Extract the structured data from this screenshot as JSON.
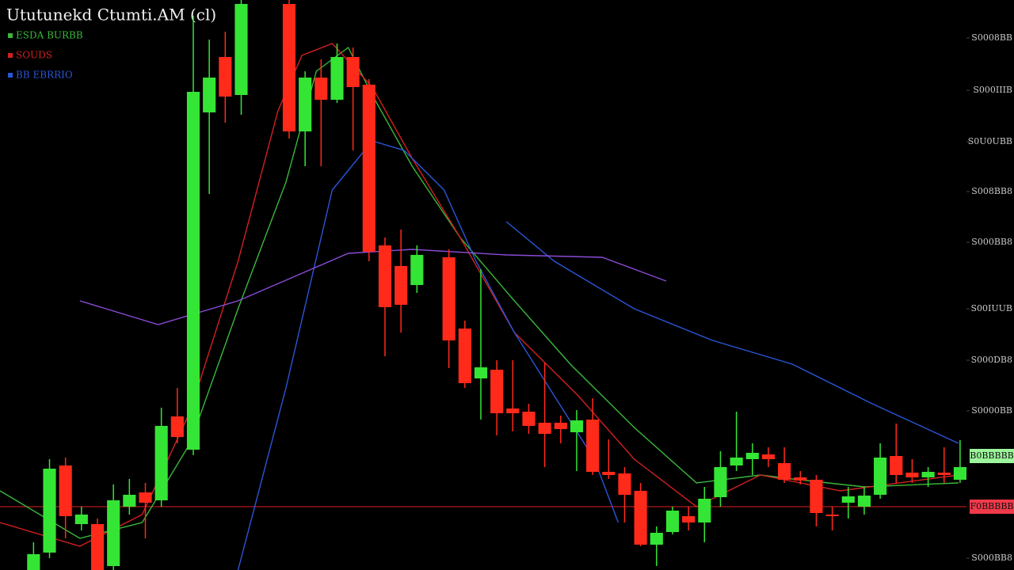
{
  "chart_data": {
    "type": "candlestick",
    "title": "Ututunekd Ctumti.AM (cl)",
    "up_color": "#35e535",
    "down_color": "#ff2a1a",
    "xlim": [
      -2.1,
      58.4
    ],
    "ylim": [
      0,
      720
    ],
    "yticks": [
      {
        "value": 672,
        "label": "S0008BB"
      },
      {
        "value": 606,
        "label": "S000IIIB"
      },
      {
        "value": 541,
        "label": "S0U0UBB"
      },
      {
        "value": 478,
        "label": "S008BB8"
      },
      {
        "value": 414,
        "label": "S000BB8"
      },
      {
        "value": 330,
        "label": "S00IUUB"
      },
      {
        "value": 265,
        "label": "S000DB8"
      },
      {
        "value": 201,
        "label": "S0000BB"
      },
      {
        "value": 15,
        "label": "S000BB8"
      }
    ],
    "open": [
      0,
      22,
      132,
      58,
      58,
      5,
      80,
      98,
      88,
      194,
      152,
      578,
      648,
      600,
      null,
      null,
      715,
      554,
      622,
      594,
      648,
      613,
      410,
      384,
      360,
      null,
      395,
      305,
      242,
      253,
      204,
      200,
      186,
      186,
      174,
      190,
      124,
      122,
      100,
      32,
      48,
      68,
      60,
      92,
      132,
      140,
      146,
      135,
      117,
      114,
      70,
      85,
      80,
      95,
      144,
      123,
      117,
      123,
      114
    ],
    "high": [
      35,
      140,
      142,
      80,
      65,
      108,
      115,
      110,
      205,
      230,
      700,
      670,
      680,
      720,
      null,
      null,
      720,
      630,
      645,
      665,
      660,
      620,
      420,
      430,
      410,
      null,
      405,
      315,
      380,
      265,
      265,
      210,
      262,
      195,
      202,
      217,
      165,
      130,
      110,
      55,
      80,
      80,
      105,
      150,
      200,
      160,
      155,
      155,
      125,
      120,
      80,
      105,
      105,
      160,
      185,
      140,
      130,
      155,
      164
    ],
    "low": [
      0,
      15,
      40,
      50,
      0,
      0,
      70,
      40,
      80,
      160,
      145,
      475,
      565,
      575,
      null,
      null,
      545,
      510,
      510,
      590,
      530,
      390,
      270,
      300,
      350,
      null,
      255,
      230,
      190,
      170,
      175,
      172,
      130,
      160,
      125,
      120,
      115,
      60,
      30,
      5,
      45,
      50,
      35,
      80,
      125,
      120,
      130,
      110,
      108,
      55,
      50,
      65,
      70,
      90,
      110,
      110,
      105,
      110,
      110
    ],
    "close": [
      20,
      128,
      68,
      70,
      0,
      88,
      95,
      85,
      182,
      168,
      604,
      622,
      598,
      715,
      null,
      null,
      554,
      622,
      594,
      648,
      610,
      402,
      332,
      335,
      398,
      null,
      290,
      236,
      256,
      198,
      198,
      182,
      172,
      178,
      189,
      124,
      120,
      95,
      32,
      47,
      75,
      60,
      90,
      130,
      142,
      148,
      140,
      114,
      113,
      72,
      68,
      93,
      94,
      142,
      120,
      117,
      124,
      120,
      130
    ],
    "series": [
      {
        "name": "ESDA BURBB",
        "color": "#39b83a",
        "x": [
          -2.1,
          2.9,
          6.8,
          9.8,
          12.8,
          15.8,
          17.7,
          19.7,
          21.2,
          23.7,
          26.7,
          30.1,
          33.6,
          37.6,
          41.5,
          45.5,
          47.5,
          52.0,
          57.9
        ],
        "values": [
          100,
          40,
          60,
          160,
          330,
          490,
          630,
          660,
          600,
          510,
          420,
          340,
          260,
          180,
          110,
          120,
          115,
          105,
          110
        ]
      },
      {
        "name": "SOUDS",
        "color": "#d42020",
        "x": [
          -2.1,
          2.9,
          6.8,
          9.8,
          12.8,
          15.3,
          16.8,
          18.7,
          21.2,
          23.7,
          26.7,
          30.1,
          34.1,
          37.6,
          41.5,
          45.5,
          50.5,
          57.9
        ],
        "values": [
          60,
          30,
          70,
          200,
          390,
          580,
          650,
          665,
          610,
          520,
          420,
          300,
          220,
          140,
          80,
          120,
          100,
          120
        ]
      },
      {
        "name": "BB EBRRIO",
        "color": "#2a56d8",
        "x": [
          12.8,
          15.8,
          18.7,
          21.2,
          23.2,
          25.7,
          27.7,
          30.1,
          32.6,
          35.1,
          36.6,
          null,
          29.6,
          32.6,
          37.6,
          42.5,
          47.5,
          52.5,
          57.9
        ],
        "values": [
          0,
          230,
          480,
          542,
          530,
          480,
          390,
          300,
          220,
          140,
          60,
          null,
          440,
          390,
          330,
          290,
          260,
          210,
          160
        ]
      },
      {
        "color": "#8a4bd6",
        "x": [
          2.9,
          7.8,
          12.8,
          19.7,
          23.7,
          29.6,
          35.6,
          39.6
        ],
        "values": [
          340,
          310,
          340,
          400,
          405,
          398,
          395,
          365
        ]
      }
    ],
    "hlines": [
      {
        "value": 80,
        "color": "#e02020"
      }
    ],
    "price_tags": [
      {
        "value": 144,
        "label": "B0BBBBB",
        "color": "#9cf59c"
      },
      {
        "value": 80,
        "label": "F0BBBBB",
        "color": "#f03a4a"
      }
    ]
  }
}
